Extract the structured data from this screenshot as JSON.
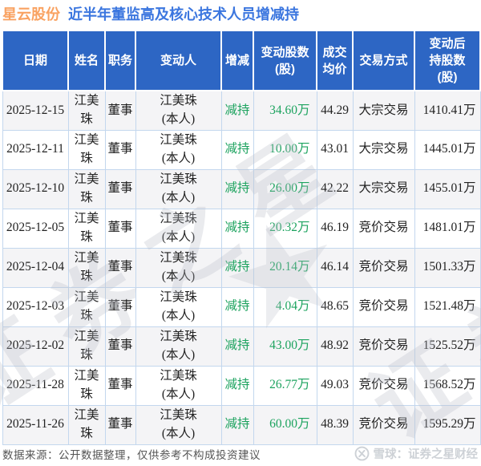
{
  "title": {
    "stock": "星云股份",
    "subtitle": "近半年董监高及核心技术人员增减持"
  },
  "table": {
    "headers": [
      "日期",
      "姓名",
      "职务",
      "变动人",
      "增减",
      "变动股数\n(股)",
      "成交\n均价",
      "交易方式",
      "变动后\n持股数\n(股)"
    ],
    "header_keys": [
      "date",
      "name",
      "position",
      "changer",
      "direction",
      "shares-changed",
      "avg-price",
      "trade-type",
      "shares-after"
    ],
    "rows": [
      [
        "2025-12-15",
        "江美珠",
        "董事",
        "江美珠\n(本人)",
        "减持",
        "34.60万",
        "44.29",
        "大宗交易",
        "1410.41万"
      ],
      [
        "2025-12-11",
        "江美珠",
        "董事",
        "江美珠\n(本人)",
        "减持",
        "10.00万",
        "43.01",
        "大宗交易",
        "1445.01万"
      ],
      [
        "2025-12-10",
        "江美珠",
        "董事",
        "江美珠\n(本人)",
        "减持",
        "26.00万",
        "42.22",
        "大宗交易",
        "1455.01万"
      ],
      [
        "2025-12-05",
        "江美珠",
        "董事",
        "江美珠\n(本人)",
        "减持",
        "20.32万",
        "46.19",
        "竞价交易",
        "1481.01万"
      ],
      [
        "2025-12-04",
        "江美珠",
        "董事",
        "江美珠\n(本人)",
        "减持",
        "20.14万",
        "46.14",
        "竞价交易",
        "1501.33万"
      ],
      [
        "2025-12-03",
        "江美珠",
        "董事",
        "江美珠\n(本人)",
        "减持",
        "4.04万",
        "48.65",
        "竞价交易",
        "1521.48万"
      ],
      [
        "2025-12-02",
        "江美珠",
        "董事",
        "江美珠\n(本人)",
        "减持",
        "43.00万",
        "48.92",
        "竞价交易",
        "1525.52万"
      ],
      [
        "2025-11-28",
        "江美珠",
        "董事",
        "江美珠\n(本人)",
        "减持",
        "26.77万",
        "49.03",
        "竞价交易",
        "1568.52万"
      ],
      [
        "2025-11-26",
        "江美珠",
        "董事",
        "江美珠\n(本人)",
        "减持",
        "60.00万",
        "48.39",
        "竞价交易",
        "1595.29万"
      ]
    ]
  },
  "footer": {
    "source": "数据来源：公开数据整理，仅供参考不构成投资建议",
    "brand": "雪球：证券之星财经"
  },
  "watermark": {
    "text1": "证券之星",
    "text2": "证券",
    "star": "★"
  },
  "colors": {
    "header_bg": "#2D66C4",
    "stock_orange": "#F9A261",
    "subtitle_blue": "#3B76DF",
    "decrease_green": "#1DA35F"
  }
}
